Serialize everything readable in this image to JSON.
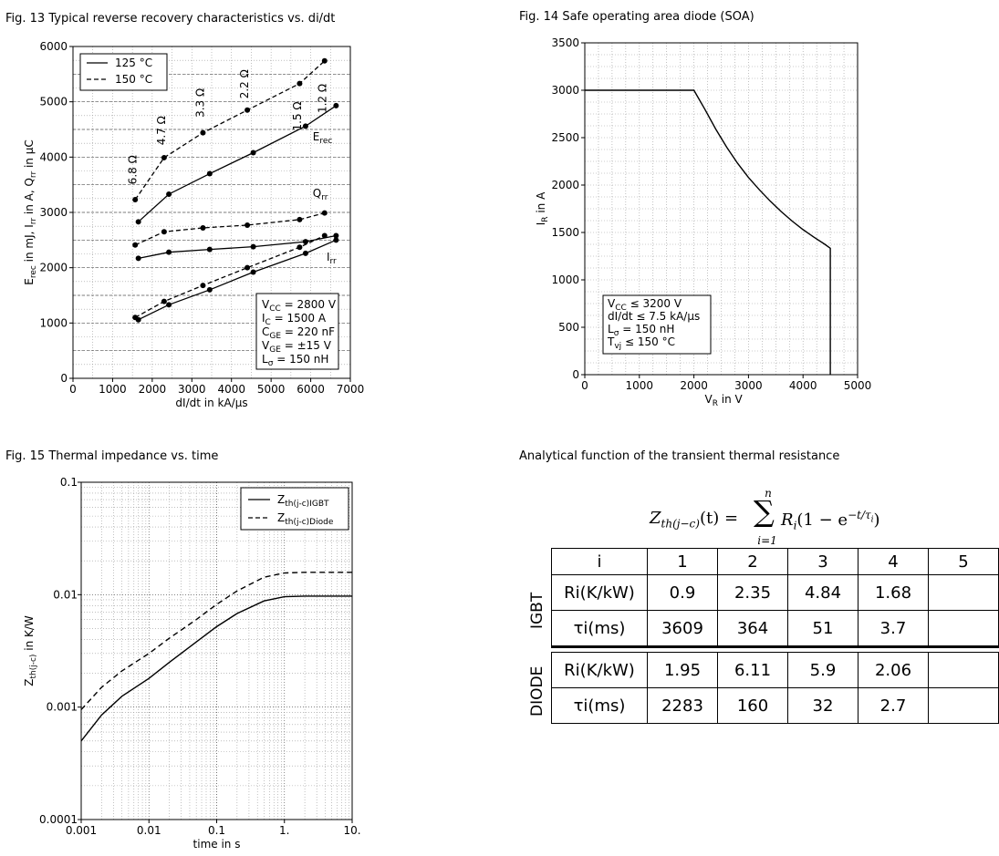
{
  "captions": {
    "fig13": "Fig. 13  Typical reverse recovery characteristics vs. di/dt",
    "fig14": "Fig. 14  Safe operating area diode (SOA)",
    "fig15": "Fig. 15  Thermal impedance vs. time",
    "analytical": "Analytical function of the transient thermal resistance"
  },
  "chart_data": [
    {
      "id": "fig13",
      "type": "line",
      "title": "Typical reverse recovery characteristics vs. di/dt",
      "xlabel": "dI/dt in kA/µs",
      "ylabel": "E_rec in mJ, I_rr in A, Q_rr in µC",
      "xlim": [
        0,
        7000
      ],
      "ylim": [
        0,
        6000
      ],
      "x_ticks": [
        0,
        1000,
        2000,
        3000,
        4000,
        5000,
        6000,
        7000
      ],
      "y_ticks": [
        0,
        1000,
        2000,
        3000,
        4000,
        5000,
        6000
      ],
      "grid": true,
      "legend": [
        {
          "label": "125 °C",
          "style": "solid"
        },
        {
          "label": "150 °C",
          "style": "dashed"
        }
      ],
      "legend_position": "top-left",
      "series": [
        {
          "label": "Erec",
          "temp": "125 °C",
          "style": "solid",
          "x": [
            1650,
            2420,
            3450,
            4550,
            5870,
            6640
          ],
          "y": [
            2830,
            3330,
            3700,
            4080,
            4560,
            4930
          ]
        },
        {
          "label": "Erec",
          "temp": "150 °C",
          "style": "dashed",
          "x": [
            1570,
            2300,
            3280,
            4400,
            5720,
            6350
          ],
          "y": [
            3230,
            3990,
            4440,
            4850,
            5330,
            5740
          ]
        },
        {
          "label": "Qrr",
          "temp": "125 °C",
          "style": "solid",
          "x": [
            1650,
            2420,
            3450,
            4550,
            5870,
            6640
          ],
          "y": [
            2170,
            2280,
            2330,
            2380,
            2470,
            2580
          ]
        },
        {
          "label": "Qrr",
          "temp": "150 °C",
          "style": "dashed",
          "x": [
            1570,
            2300,
            3280,
            4400,
            5720,
            6350
          ],
          "y": [
            2410,
            2650,
            2720,
            2770,
            2870,
            2990
          ]
        },
        {
          "label": "Irr",
          "temp": "125 °C",
          "style": "solid",
          "x": [
            1650,
            2420,
            3450,
            4550,
            5870,
            6640
          ],
          "y": [
            1060,
            1330,
            1600,
            1920,
            2260,
            2500
          ]
        },
        {
          "label": "Irr",
          "temp": "150 °C",
          "style": "dashed",
          "x": [
            1570,
            2300,
            3280,
            4400,
            5720,
            6350
          ],
          "y": [
            1100,
            1390,
            1680,
            2000,
            2370,
            2580
          ]
        }
      ],
      "curve_labels": [
        {
          "text": "E",
          "sub": "rec",
          "x": 6050,
          "y": 4300
        },
        {
          "text": "Q",
          "sub": "rr",
          "x": 6050,
          "y": 3280
        },
        {
          "text": "I",
          "sub": "rr",
          "x": 6400,
          "y": 2130
        }
      ],
      "resistor_labels": [
        {
          "text": "6.8 Ω",
          "x": 1600,
          "y": 3770
        },
        {
          "text": "4.7 Ω",
          "x": 2330,
          "y": 4480
        },
        {
          "text": "3.3 Ω",
          "x": 3300,
          "y": 4980
        },
        {
          "text": "2.2 Ω",
          "x": 4420,
          "y": 5320
        },
        {
          "text": "1.5 Ω",
          "x": 5760,
          "y": 4740
        },
        {
          "text": "1.2 Ω",
          "x": 6390,
          "y": 5060
        }
      ],
      "conditions": [
        {
          "main": "V",
          "sub": "CC",
          "rest": " = 2800 V"
        },
        {
          "main": "I",
          "sub": "C",
          "rest": " = 1500 A"
        },
        {
          "main": "C",
          "sub": "GE",
          "rest": " = 220 nF"
        },
        {
          "main": "V",
          "sub": "GE",
          "rest": " = ±15 V"
        },
        {
          "main": "L",
          "sub": "σ",
          "rest": " = 150 nH"
        }
      ]
    },
    {
      "id": "fig14",
      "type": "line",
      "title": "Safe operating area diode (SOA)",
      "xlabel": "V_R in V",
      "ylabel": "I_R in A",
      "xlim": [
        0,
        5000
      ],
      "ylim": [
        0,
        3500
      ],
      "x_ticks": [
        0,
        1000,
        2000,
        3000,
        4000,
        5000
      ],
      "y_ticks": [
        0,
        500,
        1000,
        1500,
        2000,
        2500,
        3000,
        3500
      ],
      "grid": true,
      "series": [
        {
          "label": "SOA",
          "style": "solid",
          "x": [
            0,
            2000,
            2200,
            2400,
            2600,
            2800,
            3000,
            3200,
            3400,
            3600,
            3800,
            4000,
            4200,
            4400,
            4500,
            4500
          ],
          "y": [
            3000,
            3000,
            2800,
            2590,
            2400,
            2230,
            2080,
            1950,
            1830,
            1720,
            1620,
            1530,
            1450,
            1375,
            1333,
            0
          ]
        }
      ],
      "conditions": [
        {
          "main": "V",
          "sub": "CC",
          "rest": " ≤ 3200 V"
        },
        {
          "main": "dI/dt",
          "sub": "",
          "rest": " ≤ 7.5 kA/µs"
        },
        {
          "main": "L",
          "sub": "σ",
          "rest": " = 150 nH"
        },
        {
          "main": "T",
          "sub": "vj",
          "rest": " ≤ 150 °C"
        }
      ]
    },
    {
      "id": "fig15",
      "type": "line",
      "title": "Thermal impedance vs. time",
      "xlabel": "time in s",
      "ylabel": "Z_th(j-c) in K/W",
      "x_scale": "log",
      "y_scale": "log",
      "xlim": [
        0.001,
        10
      ],
      "ylim": [
        0.0001,
        0.1
      ],
      "x_ticks": [
        "0.001",
        "0.01",
        "0.1",
        "1.",
        "10."
      ],
      "y_ticks": [
        "0.0001",
        "0.001",
        "0.01",
        "0.1"
      ],
      "grid": true,
      "legend_position": "top-right",
      "series": [
        {
          "label": "Zth(j-c)IGBT",
          "style": "solid",
          "x": [
            0.001,
            0.002,
            0.004,
            0.01,
            0.02,
            0.05,
            0.1,
            0.2,
            0.5,
            1,
            2,
            5,
            10
          ],
          "y": [
            0.0005,
            0.00085,
            0.00125,
            0.0018,
            0.0025,
            0.0038,
            0.0052,
            0.0068,
            0.0088,
            0.0096,
            0.0097,
            0.0097,
            0.0097
          ]
        },
        {
          "label": "Zth(j-c)Diode",
          "style": "dashed",
          "x": [
            0.001,
            0.002,
            0.004,
            0.01,
            0.02,
            0.05,
            0.1,
            0.2,
            0.5,
            1,
            2,
            5,
            10
          ],
          "y": [
            0.00095,
            0.0015,
            0.0021,
            0.003,
            0.0041,
            0.006,
            0.0082,
            0.0108,
            0.0143,
            0.0156,
            0.0158,
            0.0158,
            0.0158
          ]
        }
      ]
    }
  ],
  "formula": {
    "lhs_main": "Z",
    "lhs_sub": "th(j−c)",
    "lhs_arg": "(t) =",
    "sum_top": "n",
    "sum_sym": "∑",
    "sum_bottom": "i=1",
    "rhs": "R",
    "rhs_sub": "i",
    "rhs_rest": "(1 − e",
    "rhs_exp": "−t/τ",
    "rhs_exp_sub": "i",
    "rhs_close": ")"
  },
  "thermal_table": {
    "header": [
      "i",
      "1",
      "2",
      "3",
      "4",
      "5"
    ],
    "groups": [
      {
        "name": "IGBT",
        "rows": [
          {
            "label": "Ri(K/kW)",
            "values": [
              "0.9",
              "2.35",
              "4.84",
              "1.68",
              ""
            ]
          },
          {
            "label": "τi(ms)",
            "values": [
              "3609",
              "364",
              "51",
              "3.7",
              ""
            ]
          }
        ]
      },
      {
        "name": "DIODE",
        "rows": [
          {
            "label": "Ri(K/kW)",
            "values": [
              "1.95",
              "6.11",
              "5.9",
              "2.06",
              ""
            ]
          },
          {
            "label": "τi(ms)",
            "values": [
              "2283",
              "160",
              "32",
              "2.7",
              ""
            ]
          }
        ]
      }
    ]
  }
}
